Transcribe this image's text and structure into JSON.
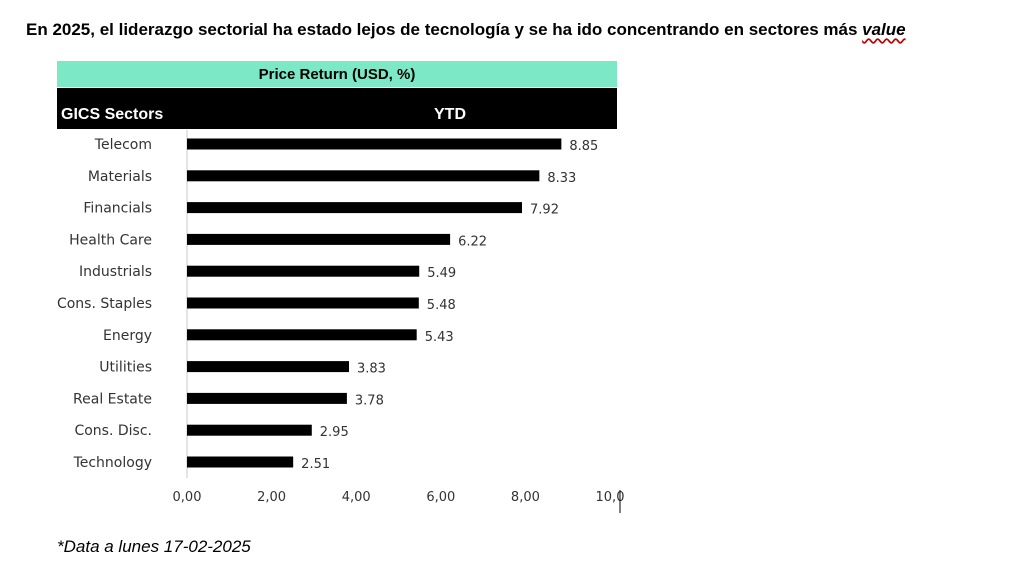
{
  "title_prefix": "En 2025, el liderazgo sectorial ha estado lejos de tecnología y se ha ido concentrando en sectores más ",
  "title_emphasis": "value",
  "table_header": "Price Return (USD, %)",
  "column_left": "GICS Sectors",
  "column_right": "YTD",
  "footnote": "*Data a lunes 17-02-2025",
  "colors": {
    "header_band": "#7de8c5",
    "bar": "#000000"
  },
  "chart_data": {
    "type": "bar",
    "orientation": "horizontal",
    "categories": [
      "Telecom",
      "Materials",
      "Financials",
      "Health Care",
      "Industrials",
      "Cons. Staples",
      "Energy",
      "Utilities",
      "Real Estate",
      "Cons. Disc.",
      "Technology"
    ],
    "values": [
      8.85,
      8.33,
      7.92,
      6.22,
      5.49,
      5.48,
      5.43,
      3.83,
      3.78,
      2.95,
      2.51
    ],
    "value_labels": [
      "8.85",
      "8.33",
      "7.92",
      "6.22",
      "5.49",
      "5.48",
      "5.43",
      "3.83",
      "3.78",
      "2.95",
      "2.51"
    ],
    "xlim": [
      0,
      10
    ],
    "xticks": [
      0,
      2,
      4,
      6,
      8,
      10
    ],
    "xtick_labels": [
      "0,00",
      "2,00",
      "4,00",
      "6,00",
      "8,00",
      "10,0"
    ],
    "grid": false,
    "legend": "none"
  }
}
